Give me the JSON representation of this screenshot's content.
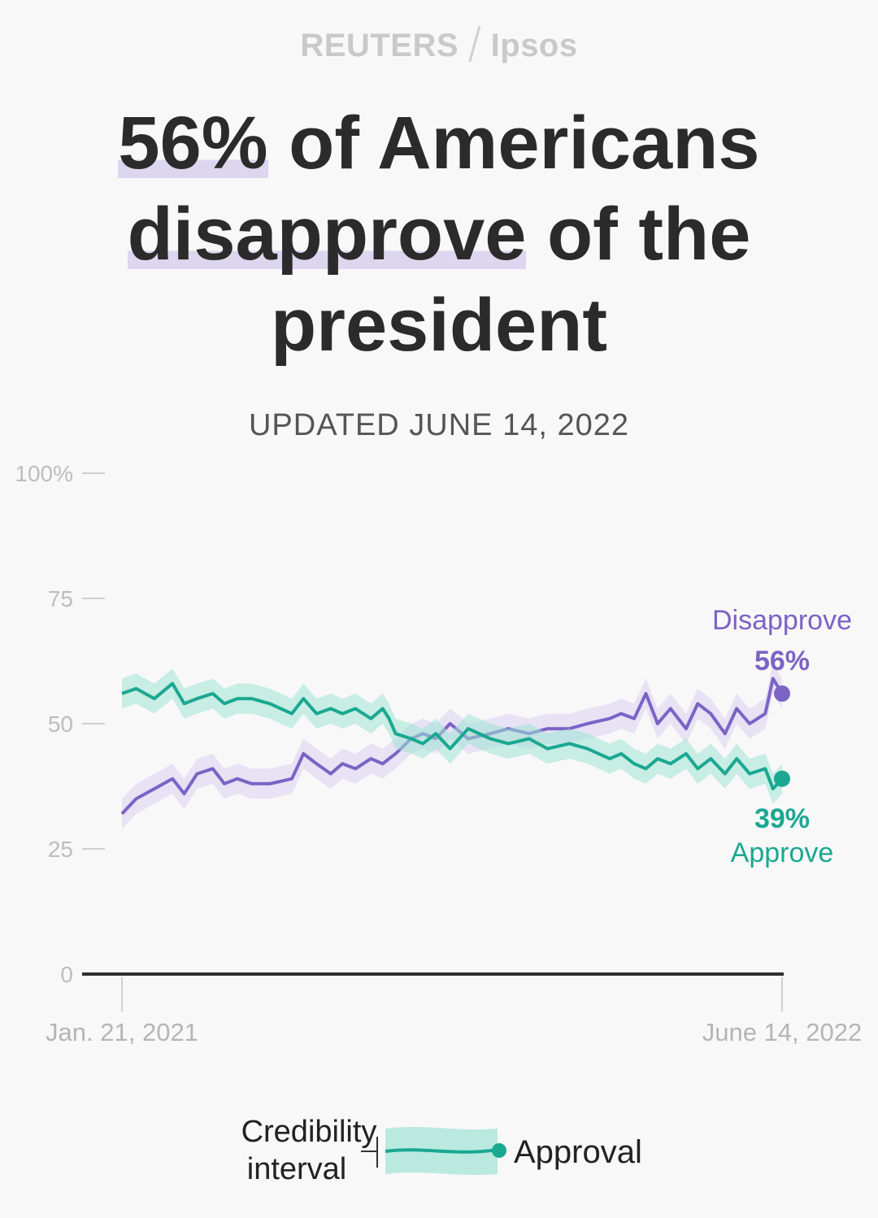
{
  "brand": {
    "left": "REUTERS",
    "separator": "/",
    "right": "Ipsos"
  },
  "headline": {
    "highlight1": "56%",
    "part1": " of Americans",
    "highlight2": "disapprove",
    "part2": " of the president"
  },
  "updated": "UPDATED JUNE 14, 2022",
  "colors": {
    "approve": "#1aa891",
    "approve_band": "#9fe3d4",
    "disapprove": "#7b63c6",
    "disapprove_band": "#d9d0f0",
    "highlight": "#ddd6ef"
  },
  "chart_data": {
    "type": "line",
    "title": "",
    "xlabel": "",
    "ylabel": "",
    "ylim": [
      0,
      100
    ],
    "y_ticks": [
      {
        "value": 0,
        "label": "0"
      },
      {
        "value": 25,
        "label": "25"
      },
      {
        "value": 50,
        "label": "50"
      },
      {
        "value": 75,
        "label": "75"
      },
      {
        "value": 100,
        "label": "100%"
      }
    ],
    "x_range": [
      "2021-01-21",
      "2022-06-14"
    ],
    "x_tick_labels": [
      "Jan. 21, 2021",
      "June 14, 2022"
    ],
    "series": [
      {
        "name": "Disapprove",
        "end_label": "56%",
        "credibility_band": 3,
        "x": [
          "2021-01-21",
          "2021-02-01",
          "2021-02-15",
          "2021-03-01",
          "2021-03-10",
          "2021-03-20",
          "2021-04-01",
          "2021-04-10",
          "2021-04-20",
          "2021-05-01",
          "2021-05-15",
          "2021-06-01",
          "2021-06-10",
          "2021-06-20",
          "2021-07-01",
          "2021-07-10",
          "2021-07-20",
          "2021-08-01",
          "2021-08-10",
          "2021-08-15",
          "2021-08-20",
          "2021-09-01",
          "2021-09-10",
          "2021-09-20",
          "2021-10-01",
          "2021-10-15",
          "2021-11-01",
          "2021-11-15",
          "2021-12-01",
          "2021-12-15",
          "2022-01-01",
          "2022-01-15",
          "2022-02-01",
          "2022-02-10",
          "2022-02-20",
          "2022-03-01",
          "2022-03-10",
          "2022-03-20",
          "2022-04-01",
          "2022-04-10",
          "2022-04-20",
          "2022-05-01",
          "2022-05-10",
          "2022-05-20",
          "2022-06-01",
          "2022-06-07",
          "2022-06-14"
        ],
        "values": [
          32,
          35,
          37,
          39,
          36,
          40,
          41,
          38,
          39,
          38,
          38,
          39,
          44,
          42,
          40,
          42,
          41,
          43,
          42,
          43,
          44,
          47,
          48,
          47,
          50,
          47,
          48,
          49,
          48,
          49,
          49,
          50,
          51,
          52,
          51,
          56,
          50,
          53,
          49,
          54,
          52,
          48,
          53,
          50,
          52,
          59,
          56
        ]
      },
      {
        "name": "Approve",
        "end_label": "39%",
        "credibility_band": 3,
        "x": [
          "2021-01-21",
          "2021-02-01",
          "2021-02-15",
          "2021-03-01",
          "2021-03-10",
          "2021-03-20",
          "2021-04-01",
          "2021-04-10",
          "2021-04-20",
          "2021-05-01",
          "2021-05-15",
          "2021-06-01",
          "2021-06-10",
          "2021-06-20",
          "2021-07-01",
          "2021-07-10",
          "2021-07-20",
          "2021-08-01",
          "2021-08-10",
          "2021-08-15",
          "2021-08-20",
          "2021-09-01",
          "2021-09-10",
          "2021-09-20",
          "2021-10-01",
          "2021-10-15",
          "2021-11-01",
          "2021-11-15",
          "2021-12-01",
          "2021-12-15",
          "2022-01-01",
          "2022-01-15",
          "2022-02-01",
          "2022-02-10",
          "2022-02-20",
          "2022-03-01",
          "2022-03-10",
          "2022-03-20",
          "2022-04-01",
          "2022-04-10",
          "2022-04-20",
          "2022-05-01",
          "2022-05-10",
          "2022-05-20",
          "2022-06-01",
          "2022-06-07",
          "2022-06-14"
        ],
        "values": [
          56,
          57,
          55,
          58,
          54,
          55,
          56,
          54,
          55,
          55,
          54,
          52,
          55,
          52,
          53,
          52,
          53,
          51,
          53,
          51,
          48,
          47,
          46,
          48,
          45,
          49,
          47,
          46,
          47,
          45,
          46,
          45,
          43,
          44,
          42,
          41,
          43,
          42,
          44,
          41,
          43,
          40,
          43,
          40,
          41,
          37,
          39
        ]
      }
    ],
    "legend": {
      "band_label": "Credibility interval",
      "line_label": "Approval"
    }
  }
}
